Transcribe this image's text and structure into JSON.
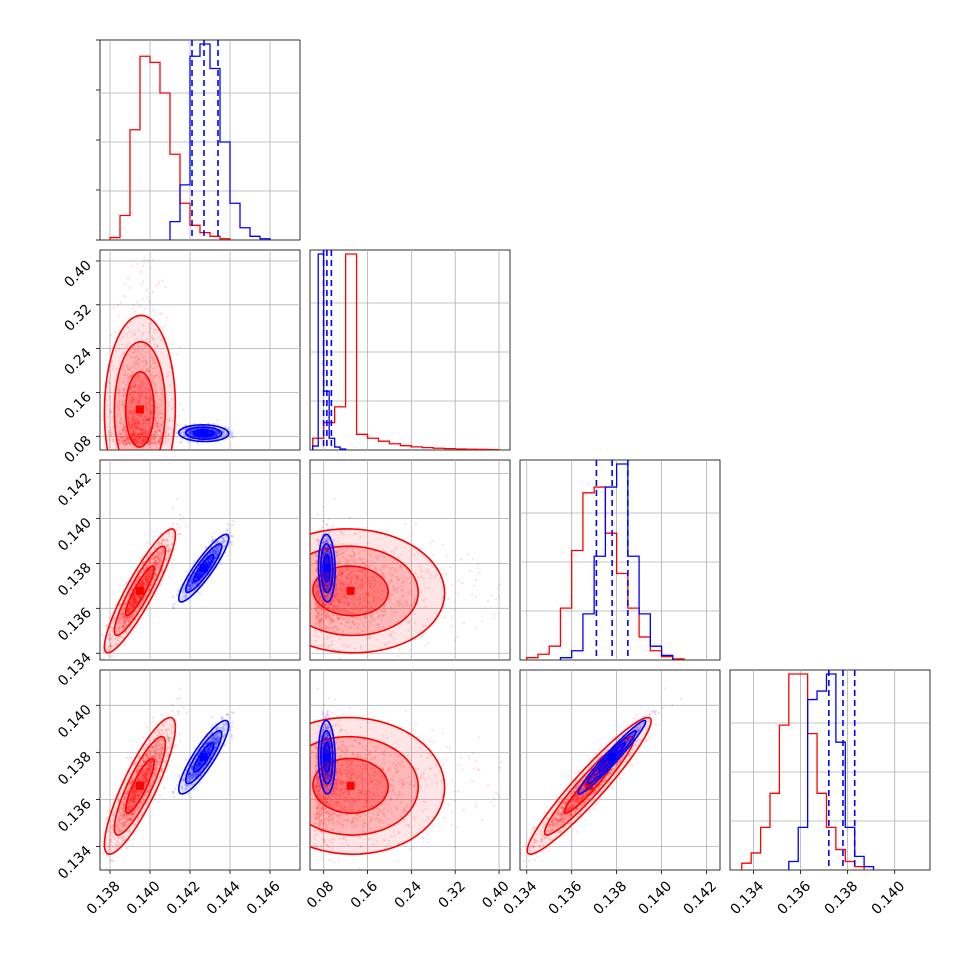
{
  "chart_data": {
    "type": "corner",
    "grid": true,
    "colors": {
      "series_a": "#ff0000",
      "series_b": "#0000ff"
    },
    "parameters": [
      {
        "range": [
          0.1375,
          0.1475
        ],
        "ticks": [
          0.138,
          0.14,
          0.142,
          0.144,
          0.146
        ],
        "tick_labels": [
          "0.138",
          "0.140",
          "0.142",
          "0.144",
          "0.146"
        ]
      },
      {
        "range": [
          0.055,
          0.42
        ],
        "ticks": [
          0.08,
          0.16,
          0.24,
          0.32,
          0.4
        ],
        "tick_labels": [
          "0.08",
          "0.16",
          "0.24",
          "0.32",
          "0.40"
        ]
      },
      {
        "range": [
          0.1337,
          0.1426
        ],
        "ticks": [
          0.134,
          0.136,
          0.138,
          0.14,
          0.142
        ],
        "tick_labels": [
          "0.134",
          "0.136",
          "0.138",
          "0.140",
          "0.142"
        ]
      },
      {
        "range": [
          0.133,
          0.1415
        ],
        "ticks": [
          0.134,
          0.136,
          0.138,
          0.14
        ],
        "tick_labels": [
          "0.134",
          "0.136",
          "0.138",
          "0.140"
        ]
      }
    ],
    "series_a": {
      "color": "#ff0000",
      "means": [
        0.1395,
        0.12,
        0.1368,
        0.1366
      ],
      "sds": [
        0.0007,
        0.06,
        0.0011,
        0.0012
      ],
      "histograms": [
        {
          "edges_start": 0.138,
          "bin_width": 0.0005,
          "counts": [
            2,
            20,
            90,
            150,
            145,
            120,
            70,
            30,
            12,
            6,
            3,
            1
          ]
        },
        {
          "edges_start": 0.06,
          "bin_width": 0.02,
          "counts": [
            6,
            14,
            22,
            100,
            8,
            6,
            4.5,
            3.2,
            2.2,
            1.6,
            1.2,
            0.9,
            0.7,
            0.5,
            0.4,
            0.3,
            0.2
          ]
        },
        {
          "edges_start": 0.134,
          "bin_width": 0.0005,
          "counts": [
            2,
            5,
            12,
            45,
            95,
            145,
            150,
            110,
            75,
            45,
            20,
            8,
            3,
            1
          ]
        },
        {
          "edges_start": 0.1335,
          "bin_width": 0.0004,
          "counts": [
            4,
            10,
            25,
            45,
            85,
            115,
            115,
            80,
            45,
            25,
            12,
            5,
            2
          ]
        }
      ]
    },
    "series_b": {
      "color": "#0000ff",
      "means": [
        0.1427,
        0.0858,
        0.1378,
        0.1378
      ],
      "sds": [
        0.0005,
        0.006,
        0.0006,
        0.0005
      ],
      "quantile_lines": [
        [
          0.1421,
          0.1427,
          0.1434
        ],
        [
          0.0798,
          0.0858,
          0.094
        ],
        [
          0.1371,
          0.1378,
          0.1385
        ],
        [
          0.1372,
          0.1378,
          0.1383
        ]
      ],
      "histograms": [
        {
          "edges_start": 0.141,
          "bin_width": 0.0005,
          "counts": [
            15,
            45,
            150,
            160,
            140,
            80,
            30,
            10,
            3,
            1
          ]
        },
        {
          "edges_start": 0.06,
          "bin_width": 0.01,
          "counts": [
            2,
            100,
            30,
            6,
            1.5,
            0.5
          ]
        },
        {
          "edges_start": 0.1355,
          "bin_width": 0.0005,
          "counts": [
            2,
            8,
            40,
            90,
            150,
            170,
            90,
            40,
            12,
            4
          ]
        },
        {
          "edges_start": 0.1355,
          "bin_width": 0.0004,
          "counts": [
            5,
            25,
            100,
            105,
            115,
            75,
            25,
            8,
            2
          ]
        }
      ]
    }
  }
}
